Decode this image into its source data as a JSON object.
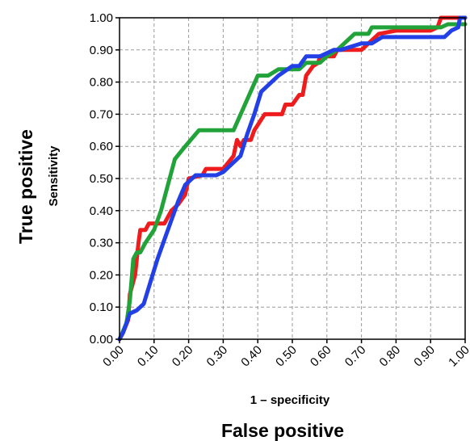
{
  "chart_data": {
    "type": "line",
    "xlabel": "1 – specificity",
    "ylabel": "Sensitivity",
    "outer_xlabel": "False positive",
    "outer_ylabel": "True positive",
    "xlim": [
      0,
      1
    ],
    "ylim": [
      0,
      1
    ],
    "grid": true,
    "x_ticks": [
      "0.00",
      "0.10",
      "0.20",
      "0.30",
      "0.40",
      "0.50",
      "0.60",
      "0.70",
      "0.80",
      "0.90",
      "1.00"
    ],
    "y_ticks": [
      "0.00",
      "0.10",
      "0.20",
      "0.30",
      "0.40",
      "0.50",
      "0.60",
      "0.70",
      "0.80",
      "0.90",
      "1.00"
    ],
    "series": [
      {
        "color": "#ee1c1c",
        "points": [
          [
            0,
            0
          ],
          [
            0.01,
            0.02
          ],
          [
            0.025,
            0.06
          ],
          [
            0.03,
            0.14
          ],
          [
            0.045,
            0.2
          ],
          [
            0.055,
            0.3
          ],
          [
            0.06,
            0.34
          ],
          [
            0.075,
            0.34
          ],
          [
            0.085,
            0.36
          ],
          [
            0.13,
            0.36
          ],
          [
            0.15,
            0.4
          ],
          [
            0.17,
            0.42
          ],
          [
            0.19,
            0.45
          ],
          [
            0.2,
            0.5
          ],
          [
            0.24,
            0.51
          ],
          [
            0.25,
            0.53
          ],
          [
            0.3,
            0.53
          ],
          [
            0.33,
            0.57
          ],
          [
            0.34,
            0.62
          ],
          [
            0.35,
            0.6
          ],
          [
            0.36,
            0.62
          ],
          [
            0.38,
            0.62
          ],
          [
            0.39,
            0.65
          ],
          [
            0.42,
            0.7
          ],
          [
            0.47,
            0.7
          ],
          [
            0.48,
            0.73
          ],
          [
            0.5,
            0.73
          ],
          [
            0.52,
            0.76
          ],
          [
            0.53,
            0.76
          ],
          [
            0.54,
            0.82
          ],
          [
            0.56,
            0.85
          ],
          [
            0.575,
            0.86
          ],
          [
            0.58,
            0.88
          ],
          [
            0.62,
            0.88
          ],
          [
            0.63,
            0.9
          ],
          [
            0.7,
            0.9
          ],
          [
            0.72,
            0.92
          ],
          [
            0.75,
            0.95
          ],
          [
            0.8,
            0.96
          ],
          [
            0.9,
            0.96
          ],
          [
            0.92,
            0.97
          ],
          [
            0.93,
            1.0
          ],
          [
            1.0,
            1.0
          ]
        ]
      },
      {
        "color": "#22a33a",
        "points": [
          [
            0,
            0
          ],
          [
            0.02,
            0.05
          ],
          [
            0.03,
            0.12
          ],
          [
            0.04,
            0.25
          ],
          [
            0.05,
            0.27
          ],
          [
            0.06,
            0.27
          ],
          [
            0.075,
            0.3
          ],
          [
            0.1,
            0.34
          ],
          [
            0.12,
            0.4
          ],
          [
            0.14,
            0.48
          ],
          [
            0.16,
            0.56
          ],
          [
            0.19,
            0.6
          ],
          [
            0.23,
            0.65
          ],
          [
            0.33,
            0.65
          ],
          [
            0.4,
            0.82
          ],
          [
            0.43,
            0.82
          ],
          [
            0.46,
            0.84
          ],
          [
            0.52,
            0.84
          ],
          [
            0.54,
            0.86
          ],
          [
            0.58,
            0.86
          ],
          [
            0.6,
            0.88
          ],
          [
            0.63,
            0.9
          ],
          [
            0.66,
            0.93
          ],
          [
            0.68,
            0.95
          ],
          [
            0.72,
            0.95
          ],
          [
            0.73,
            0.97
          ],
          [
            0.93,
            0.97
          ],
          [
            0.95,
            0.98
          ],
          [
            1.0,
            0.98
          ]
        ]
      },
      {
        "color": "#2240e6",
        "points": [
          [
            0,
            0
          ],
          [
            0.01,
            0.02
          ],
          [
            0.03,
            0.08
          ],
          [
            0.05,
            0.09
          ],
          [
            0.07,
            0.11
          ],
          [
            0.09,
            0.18
          ],
          [
            0.11,
            0.25
          ],
          [
            0.13,
            0.31
          ],
          [
            0.15,
            0.37
          ],
          [
            0.17,
            0.43
          ],
          [
            0.19,
            0.48
          ],
          [
            0.21,
            0.5
          ],
          [
            0.22,
            0.51
          ],
          [
            0.28,
            0.51
          ],
          [
            0.3,
            0.52
          ],
          [
            0.33,
            0.55
          ],
          [
            0.35,
            0.57
          ],
          [
            0.37,
            0.64
          ],
          [
            0.39,
            0.7
          ],
          [
            0.41,
            0.77
          ],
          [
            0.46,
            0.82
          ],
          [
            0.5,
            0.85
          ],
          [
            0.52,
            0.85
          ],
          [
            0.54,
            0.88
          ],
          [
            0.58,
            0.88
          ],
          [
            0.62,
            0.9
          ],
          [
            0.64,
            0.9
          ],
          [
            0.7,
            0.92
          ],
          [
            0.73,
            0.92
          ],
          [
            0.76,
            0.94
          ],
          [
            0.94,
            0.94
          ],
          [
            0.96,
            0.96
          ],
          [
            0.98,
            0.97
          ],
          [
            0.985,
            1.0
          ],
          [
            1.0,
            1.0
          ]
        ]
      }
    ]
  }
}
